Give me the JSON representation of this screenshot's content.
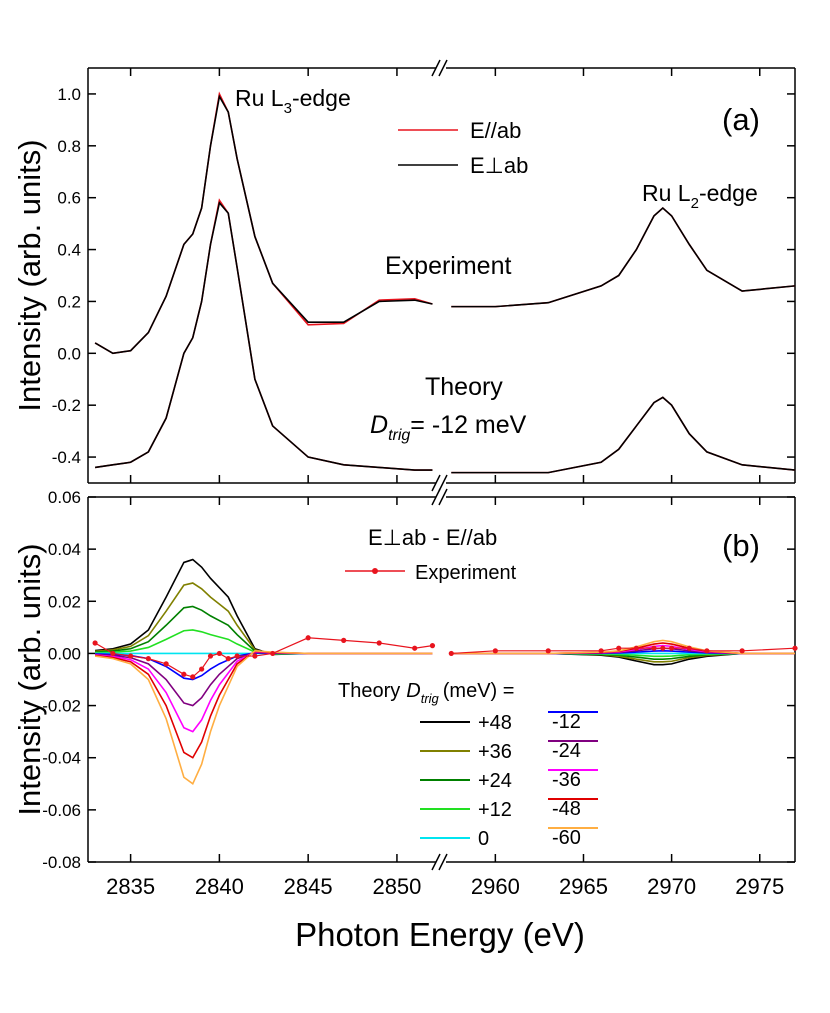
{
  "chart_data": [
    {
      "type": "line",
      "label": "(a)",
      "ylabel": "Intensity (arb. units)",
      "annotations": [
        {
          "text": "Ru L",
          "sub": "3",
          "suffix": "-edge"
        },
        {
          "text": "Ru L",
          "sub": "2",
          "suffix": "-edge"
        },
        {
          "text": "Experiment"
        },
        {
          "text": "Theory"
        },
        {
          "text": "D",
          "sub": "trig",
          "suffix": "= -12 meV"
        }
      ],
      "x": [
        2833,
        2834,
        2835,
        2836,
        2837,
        2838,
        2838.5,
        2839,
        2839.5,
        2840,
        2840.5,
        2841,
        2842,
        2843,
        2845,
        2847,
        2849,
        2851,
        2852,
        2957.5,
        2960,
        2963,
        2966,
        2967,
        2968,
        2969,
        2969.5,
        2970,
        2971,
        2972,
        2974,
        2977
      ],
      "xlim": [
        2832.6,
        2977
      ],
      "x_break": [
        2852.2,
        2957.2
      ],
      "ylim": [
        -0.5,
        1.1
      ],
      "yticks": [
        {
          "value": 1,
          "label": "1.0"
        },
        0.8,
        0.6,
        0.4,
        0.2,
        {
          "value": 0,
          "label": "0.0"
        },
        -0.2,
        -0.4
      ],
      "series": [
        {
          "name": "E//ab",
          "color": "#e8141e",
          "values": [
            0.04,
            0.0,
            0.01,
            0.08,
            0.22,
            0.42,
            0.46,
            0.56,
            0.8,
            1.0,
            0.93,
            0.75,
            0.45,
            0.27,
            0.11,
            0.115,
            0.205,
            0.21,
            0.19,
            0.18,
            0.18,
            0.195,
            0.26,
            0.3,
            0.4,
            0.53,
            0.56,
            0.53,
            0.42,
            0.32,
            0.24,
            0.26
          ],
          "theory": [
            -0.44,
            -0.43,
            -0.42,
            -0.38,
            -0.25,
            0.0,
            0.06,
            0.2,
            0.42,
            0.59,
            0.54,
            0.33,
            -0.1,
            -0.28,
            -0.4,
            -0.43,
            -0.44,
            -0.45,
            -0.45,
            -0.46,
            -0.46,
            -0.46,
            -0.42,
            -0.37,
            -0.28,
            -0.19,
            -0.17,
            -0.2,
            -0.31,
            -0.38,
            -0.43,
            -0.45
          ]
        },
        {
          "name": "E⊥ab",
          "color": "#000000",
          "values": [
            0.04,
            0.0,
            0.01,
            0.08,
            0.22,
            0.42,
            0.46,
            0.56,
            0.8,
            0.99,
            0.93,
            0.75,
            0.45,
            0.27,
            0.12,
            0.12,
            0.2,
            0.205,
            0.19,
            0.18,
            0.18,
            0.195,
            0.26,
            0.3,
            0.4,
            0.53,
            0.56,
            0.53,
            0.42,
            0.32,
            0.24,
            0.26
          ],
          "theory": [
            -0.44,
            -0.43,
            -0.42,
            -0.38,
            -0.25,
            0.0,
            0.06,
            0.2,
            0.42,
            0.58,
            0.54,
            0.33,
            -0.1,
            -0.28,
            -0.4,
            -0.43,
            -0.44,
            -0.45,
            -0.45,
            -0.46,
            -0.46,
            -0.46,
            -0.42,
            -0.37,
            -0.28,
            -0.19,
            -0.17,
            -0.2,
            -0.31,
            -0.38,
            -0.43,
            -0.45
          ]
        }
      ]
    },
    {
      "type": "line",
      "label": "(b)",
      "ylabel": "Intensity (arb. units)",
      "xlabel": "Photon Energy (eV)",
      "difference_label": "E⊥ab - E//ab",
      "legend_title": {
        "prefix": "Theory",
        "symbol": "D",
        "subscript": "trig",
        "suffix": "(meV) ="
      },
      "x": [
        2833,
        2834,
        2835,
        2836,
        2837,
        2838,
        2838.5,
        2839,
        2839.5,
        2840,
        2840.5,
        2841,
        2842,
        2843,
        2845,
        2847,
        2849,
        2851,
        2852,
        2957.5,
        2960,
        2963,
        2966,
        2967,
        2968,
        2969,
        2969.5,
        2970,
        2971,
        2972,
        2974,
        2977
      ],
      "xlim": [
        2832.6,
        2977
      ],
      "x_break": [
        2852.2,
        2957.2
      ],
      "xticks": [
        2835,
        2840,
        2845,
        2850,
        2960,
        2965,
        2970,
        2975
      ],
      "ylim": [
        -0.08,
        0.06
      ],
      "yticks": [
        0.06,
        0.04,
        0.02,
        {
          "value": 0,
          "label": "0.00"
        },
        -0.02,
        -0.04,
        -0.06,
        -0.08
      ],
      "series": [
        {
          "name": "Experiment",
          "color": "#e8141e",
          "markers": true,
          "values": [
            0.004,
            0.0,
            -0.001,
            -0.002,
            -0.004,
            -0.008,
            -0.009,
            -0.006,
            -0.001,
            0.0,
            -0.002,
            -0.001,
            -0.001,
            0.0,
            0.006,
            0.005,
            0.004,
            0.002,
            0.003,
            0.0,
            0.001,
            0.001,
            0.001,
            0.002,
            0.002,
            0.002,
            0.002,
            0.002,
            0.002,
            0.001,
            0.001,
            0.002
          ]
        },
        {
          "name": "+48",
          "color": "#000000",
          "values": [
            0.0011,
            0.0018,
            0.0036,
            0.009,
            0.0216,
            0.0349,
            0.036,
            0.0331,
            0.0288,
            0.0252,
            0.0216,
            0.0144,
            0.0018,
            -0.0004,
            0,
            0,
            0,
            0,
            0,
            0,
            0,
            0,
            -0.0007,
            -0.0014,
            -0.0029,
            -0.0043,
            -0.0043,
            -0.004,
            -0.0022,
            -0.0011,
            0,
            0
          ]
        },
        {
          "name": "+36",
          "color": "#808000",
          "values": [
            0.0008,
            0.0014,
            0.0027,
            0.0068,
            0.0162,
            0.0262,
            0.027,
            0.0248,
            0.0216,
            0.0189,
            0.0162,
            0.0108,
            0.0014,
            -0.0003,
            0,
            0,
            0,
            0,
            0,
            0,
            0,
            0,
            -0.0005,
            -0.0011,
            -0.0022,
            -0.0032,
            -0.0032,
            -0.003,
            -0.0016,
            -0.0008,
            0,
            0
          ]
        },
        {
          "name": "+24",
          "color": "#008000",
          "values": [
            0.0005,
            0.0009,
            0.0018,
            0.0045,
            0.0108,
            0.0175,
            0.018,
            0.0166,
            0.0144,
            0.0126,
            0.0108,
            0.0072,
            0.0009,
            -0.0002,
            0,
            0,
            0,
            0,
            0,
            0,
            0,
            0,
            -0.0004,
            -0.0007,
            -0.0014,
            -0.0022,
            -0.0022,
            -0.002,
            -0.0011,
            -0.0005,
            0,
            0
          ]
        },
        {
          "name": "+12",
          "color": "#22e022",
          "values": [
            0.0003,
            0.0005,
            0.0009,
            0.0023,
            0.0054,
            0.0087,
            0.009,
            0.0083,
            0.0072,
            0.0063,
            0.0054,
            0.0036,
            0.0005,
            -0.0001,
            0,
            0,
            0,
            0,
            0,
            0,
            0,
            0,
            -0.0002,
            -0.0004,
            -0.0007,
            -0.0011,
            -0.0011,
            -0.001,
            -0.0005,
            -0.0003,
            0,
            0
          ]
        },
        {
          "name": "0",
          "color": "#00e5f0",
          "values": [
            0,
            0,
            0,
            0,
            0,
            0,
            0,
            0,
            0,
            0,
            0,
            0,
            0,
            0,
            0,
            0,
            0,
            0,
            0,
            0,
            0,
            0,
            0,
            0,
            0,
            0,
            0,
            0,
            0,
            0,
            0,
            0
          ]
        },
        {
          "name": "-12",
          "color": "#0000ff",
          "values": [
            -0.0002,
            -0.0004,
            -0.0008,
            -0.002,
            -0.005,
            -0.0095,
            -0.01,
            -0.0085,
            -0.006,
            -0.004,
            -0.0025,
            -0.001,
            0.0002,
            0.0001,
            0,
            0,
            0,
            0,
            0,
            0,
            0,
            0,
            0.0001,
            0.0002,
            0.0005,
            0.0009,
            0.001,
            0.0009,
            0.0005,
            0.0002,
            0,
            0
          ]
        },
        {
          "name": "-24",
          "color": "#800080",
          "values": [
            -0.0004,
            -0.0008,
            -0.0016,
            -0.004,
            -0.01,
            -0.019,
            -0.02,
            -0.017,
            -0.012,
            -0.008,
            -0.005,
            -0.002,
            0.0004,
            0.0002,
            0,
            0,
            0,
            0,
            0,
            0,
            0,
            0,
            0.0002,
            0.0004,
            0.001,
            0.0018,
            0.002,
            0.0018,
            0.001,
            0.0004,
            0,
            0
          ]
        },
        {
          "name": "-36",
          "color": "#ff00ff",
          "values": [
            -0.0006,
            -0.0012,
            -0.0024,
            -0.006,
            -0.015,
            -0.0285,
            -0.03,
            -0.0255,
            -0.018,
            -0.012,
            -0.0075,
            -0.003,
            0.0006,
            0.0003,
            0,
            0,
            0,
            0,
            0,
            0,
            0,
            0,
            0.0003,
            0.0006,
            0.0015,
            0.0027,
            0.003,
            0.0027,
            0.0015,
            0.0006,
            0,
            0
          ]
        },
        {
          "name": "-48",
          "color": "#e00000",
          "values": [
            -0.0008,
            -0.0016,
            -0.0032,
            -0.008,
            -0.02,
            -0.038,
            -0.04,
            -0.034,
            -0.024,
            -0.016,
            -0.01,
            -0.004,
            0.0008,
            0.0004,
            0,
            0,
            0,
            0,
            0,
            0,
            0,
            0,
            0.0004,
            0.0008,
            0.002,
            0.0036,
            0.004,
            0.0036,
            0.002,
            0.0008,
            0,
            0
          ]
        },
        {
          "name": "-60",
          "color": "#ffae42",
          "values": [
            -0.001,
            -0.002,
            -0.004,
            -0.01,
            -0.025,
            -0.0475,
            -0.05,
            -0.0425,
            -0.03,
            -0.02,
            -0.0125,
            -0.005,
            0.001,
            0.0005,
            0,
            0,
            0,
            0,
            0,
            0,
            0,
            0,
            0.0005,
            0.001,
            0.0025,
            0.0045,
            0.005,
            0.0045,
            0.0025,
            0.001,
            0,
            0
          ]
        }
      ]
    }
  ]
}
